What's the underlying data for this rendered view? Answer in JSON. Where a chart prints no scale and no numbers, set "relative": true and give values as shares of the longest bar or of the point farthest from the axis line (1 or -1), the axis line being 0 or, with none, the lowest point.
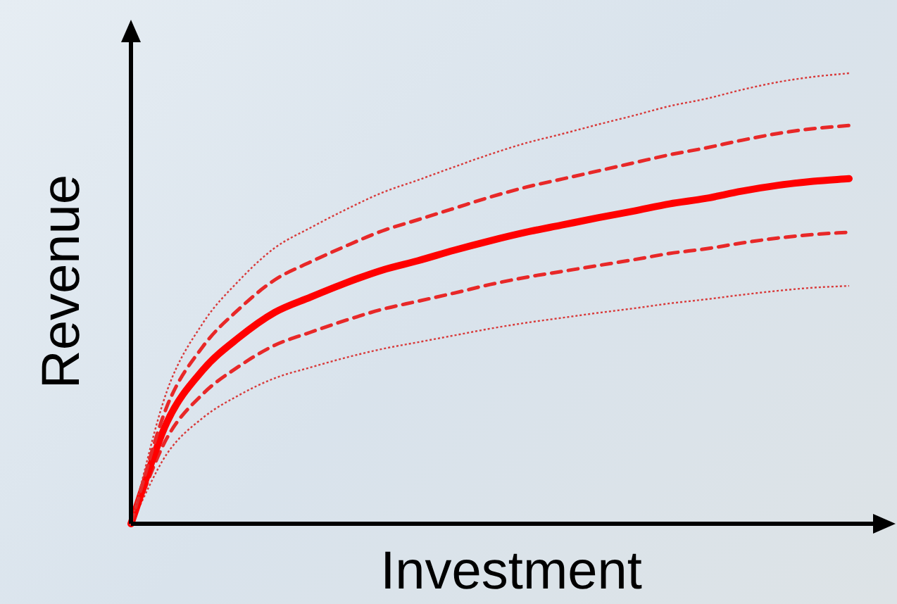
{
  "chart_data": {
    "type": "line",
    "xlabel": "Investment",
    "ylabel": "Revenue",
    "relative": true,
    "marker": "none",
    "grid": false,
    "categories": [
      null,
      null,
      null,
      null,
      null,
      null,
      null,
      null,
      null,
      null,
      null,
      null,
      null,
      null,
      null,
      null,
      null,
      null,
      null,
      null,
      null
    ],
    "series": [
      {
        "color": "#d83a3a",
        "line_style": "dotted",
        "values": [
          0,
          0.294,
          0.445,
          0.539,
          0.612,
          0.657,
          0.698,
          0.735,
          0.763,
          0.792,
          0.82,
          0.845,
          0.865,
          0.886,
          0.906,
          0.927,
          0.943,
          0.963,
          0.98,
          0.992,
          1
        ]
      },
      {
        "color": "#e82828",
        "line_style": "dashed",
        "values": [
          0,
          0.26,
          0.393,
          0.476,
          0.541,
          0.581,
          0.617,
          0.65,
          0.675,
          0.7,
          0.725,
          0.747,
          0.765,
          0.783,
          0.801,
          0.819,
          0.834,
          0.851,
          0.866,
          0.877,
          0.884
        ]
      },
      {
        "color": "#ff0000",
        "line_style": "solid",
        "values": [
          0,
          0.225,
          0.341,
          0.413,
          0.469,
          0.503,
          0.535,
          0.563,
          0.584,
          0.607,
          0.628,
          0.647,
          0.663,
          0.679,
          0.694,
          0.71,
          0.722,
          0.738,
          0.751,
          0.76,
          0.766
        ]
      },
      {
        "color": "#e82828",
        "line_style": "dashed",
        "values": [
          0,
          0.19,
          0.288,
          0.349,
          0.396,
          0.425,
          0.452,
          0.476,
          0.494,
          0.512,
          0.531,
          0.547,
          0.56,
          0.573,
          0.586,
          0.6,
          0.61,
          0.623,
          0.634,
          0.642,
          0.647
        ]
      },
      {
        "color": "#d83a3a",
        "line_style": "dotted",
        "values": [
          0,
          0.155,
          0.235,
          0.285,
          0.323,
          0.347,
          0.369,
          0.388,
          0.403,
          0.418,
          0.433,
          0.446,
          0.457,
          0.468,
          0.478,
          0.489,
          0.498,
          0.508,
          0.517,
          0.524,
          0.528
        ]
      }
    ]
  }
}
